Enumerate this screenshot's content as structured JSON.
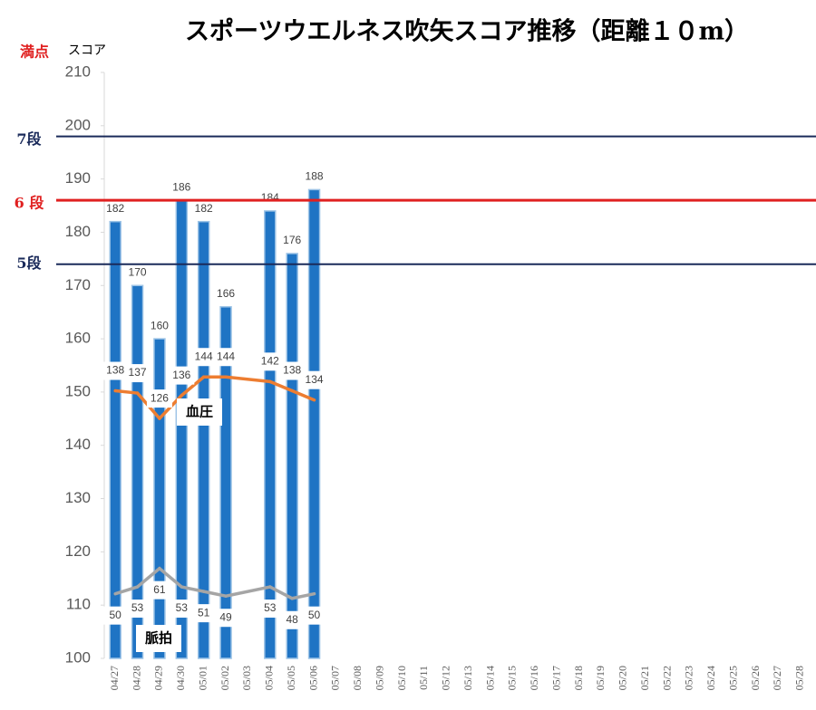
{
  "chart_data": {
    "type": "bar",
    "title": "スポーツウエルネス吹矢スコア推移（距離１０m）",
    "y_label": "スコア",
    "max_label": "満点",
    "categories": [
      "04/27",
      "04/28",
      "04/29",
      "04/30",
      "05/01",
      "05/02",
      "05/03",
      "05/04",
      "05/05",
      "05/06",
      "05/07",
      "05/08",
      "05/09",
      "05/10",
      "05/11",
      "05/12",
      "05/13",
      "05/14",
      "05/15",
      "05/16",
      "05/17",
      "05/18",
      "05/19",
      "05/20",
      "05/21",
      "05/22",
      "05/23",
      "05/24",
      "05/25",
      "05/26",
      "05/27",
      "05/28"
    ],
    "series": [
      {
        "name": "スコア",
        "color": "#1f74c4",
        "values": [
          182,
          170,
          160,
          186,
          182,
          166,
          null,
          184,
          176,
          188,
          null,
          null,
          null,
          null,
          null,
          null,
          null,
          null,
          null,
          null,
          null,
          null,
          null,
          null,
          null,
          null,
          null,
          null,
          null,
          null,
          null,
          null
        ]
      },
      {
        "name": "血圧",
        "color": "#ed7d31",
        "axis": "y2",
        "type": "line",
        "values": [
          138,
          137,
          126,
          136,
          144,
          144,
          null,
          142,
          138,
          134,
          null,
          null,
          null,
          null,
          null,
          null,
          null,
          null,
          null,
          null,
          null,
          null,
          null,
          null,
          null,
          null,
          null,
          null,
          null,
          null,
          null,
          null
        ]
      },
      {
        "name": "脈拍",
        "color": "#a5a5a5",
        "axis": "y2",
        "type": "line",
        "values": [
          50,
          53,
          61,
          53,
          51,
          49,
          null,
          53,
          48,
          50,
          null,
          null,
          null,
          null,
          null,
          null,
          null,
          null,
          null,
          null,
          null,
          null,
          null,
          null,
          null,
          null,
          null,
          null,
          null,
          null,
          null,
          null
        ]
      }
    ],
    "ylim": [
      100,
      210
    ],
    "yticks": [
      100,
      110,
      120,
      130,
      140,
      150,
      160,
      170,
      180,
      190,
      200,
      210
    ],
    "y2lim": [
      22,
      276
    ],
    "reference_lines": [
      {
        "label": "7段",
        "value": 198,
        "color": "#1a2a5a"
      },
      {
        "label": "6 段",
        "value": 186,
        "color": "#e02020"
      },
      {
        "label": "5段",
        "value": 174,
        "color": "#1a2a5a"
      }
    ]
  }
}
